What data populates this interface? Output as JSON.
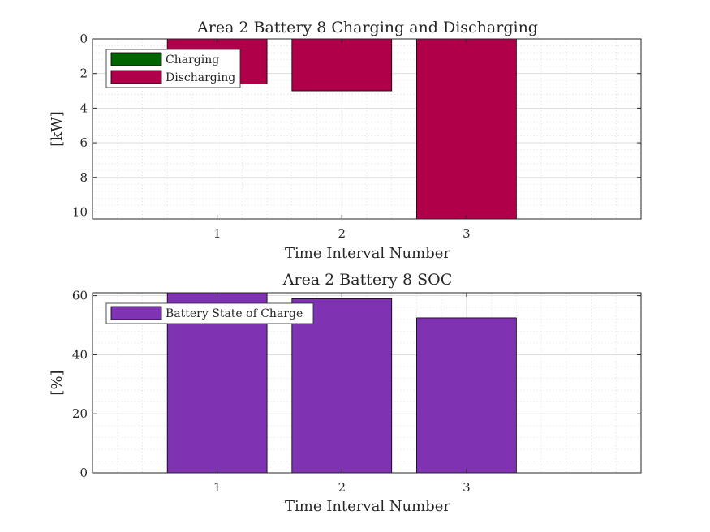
{
  "chart_data": [
    {
      "type": "bar",
      "title": "Area 2 Battery 8 Charging and Discharging",
      "xlabel": "Time Interval Number",
      "ylabel": "[kW]",
      "categories": [
        "1",
        "2",
        "3"
      ],
      "x_ticks": [
        "1",
        "2",
        "3"
      ],
      "y_ticks": [
        "0",
        "2",
        "4",
        "6",
        "8",
        "10"
      ],
      "xlim": [
        0,
        4.4
      ],
      "ylim": [
        0,
        10.4
      ],
      "y_reversed": true,
      "grid": true,
      "minor_grid": true,
      "legend_position": "top-left",
      "series": [
        {
          "name": "Charging",
          "color": "#006400",
          "values": [
            0,
            0,
            0
          ]
        },
        {
          "name": "Discharging",
          "color": "#B00049",
          "values": [
            2.6,
            3.0,
            10.4
          ]
        }
      ]
    },
    {
      "type": "bar",
      "title": "Area 2 Battery 8 SOC",
      "xlabel": "Time Interval Number",
      "ylabel": "[%]",
      "categories": [
        "1",
        "2",
        "3"
      ],
      "x_ticks": [
        "1",
        "2",
        "3"
      ],
      "y_ticks": [
        "0",
        "20",
        "40",
        "60"
      ],
      "xlim": [
        0,
        4.4
      ],
      "ylim": [
        0,
        61
      ],
      "y_reversed": false,
      "grid": true,
      "minor_grid": true,
      "legend_position": "top-left",
      "series": [
        {
          "name": "Battery State of Charge",
          "color": "#7F33B3",
          "values": [
            61,
            59,
            52.5
          ]
        }
      ]
    }
  ]
}
